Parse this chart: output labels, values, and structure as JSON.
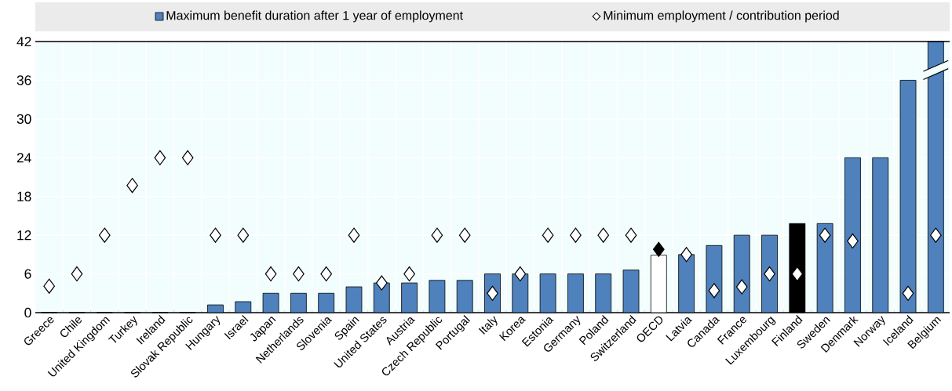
{
  "chart_data": {
    "type": "bar",
    "categories": [
      "Greece",
      "Chile",
      "United Kingdom",
      "Turkey",
      "Ireland",
      "Slovak Republic",
      "Hungary",
      "Israel",
      "Japan",
      "Netherlands",
      "Slovenia",
      "Spain",
      "United States",
      "Austria",
      "Czech Republic",
      "Portugal",
      "Italy",
      "Korea",
      "Estonia",
      "Germany",
      "Poland",
      "Switzerland",
      "OECD",
      "Latvia",
      "Canada",
      "France",
      "Luxembourg",
      "Finland",
      "Sweden",
      "Denmark",
      "Norway",
      "Iceland",
      "Belgium"
    ],
    "series": [
      {
        "name": "Maximum benefit duration after 1 year of employment",
        "color": "#4f81bd",
        "colors": [
          "#4f81bd",
          "#4f81bd",
          "#4f81bd",
          "#4f81bd",
          "#4f81bd",
          "#4f81bd",
          "#4f81bd",
          "#4f81bd",
          "#4f81bd",
          "#4f81bd",
          "#4f81bd",
          "#4f81bd",
          "#4f81bd",
          "#4f81bd",
          "#4f81bd",
          "#4f81bd",
          "#4f81bd",
          "#4f81bd",
          "#4f81bd",
          "#4f81bd",
          "#4f81bd",
          "#4f81bd",
          "#ffffff",
          "#4f81bd",
          "#4f81bd",
          "#4f81bd",
          "#4f81bd",
          "#000000",
          "#4f81bd",
          "#4f81bd",
          "#4f81bd",
          "#4f81bd",
          "#4f81bd"
        ],
        "values": [
          0,
          0,
          0,
          0,
          0,
          0,
          1.2,
          1.7,
          3,
          3,
          3,
          4,
          4.6,
          4.6,
          5,
          5,
          6,
          6,
          6,
          6,
          6,
          6.6,
          8.9,
          9,
          10.4,
          12,
          12,
          13.8,
          13.8,
          24,
          24,
          36,
          42
        ]
      },
      {
        "name": "Minimum employment / contribution period",
        "type": "scatter",
        "marker": "diamond",
        "color": "#ffffff",
        "colors": [
          "#ffffff",
          "#ffffff",
          "#ffffff",
          "#ffffff",
          "#ffffff",
          "#ffffff",
          "#ffffff",
          "#ffffff",
          "#ffffff",
          "#ffffff",
          "#ffffff",
          "#ffffff",
          "#ffffff",
          "#ffffff",
          "#ffffff",
          "#ffffff",
          "#ffffff",
          "#ffffff",
          "#ffffff",
          "#ffffff",
          "#ffffff",
          "#ffffff",
          "#000000",
          "#ffffff",
          "#ffffff",
          "#ffffff",
          "#ffffff",
          "#ffffff",
          "#ffffff",
          "#ffffff",
          "#ffffff",
          "#ffffff",
          "#ffffff"
        ],
        "values": [
          4.1,
          6,
          12,
          19.7,
          24,
          24,
          12,
          12,
          6,
          6,
          6,
          12,
          4.6,
          6,
          12,
          12,
          3,
          6,
          12,
          12,
          12,
          12,
          9.8,
          9,
          3.4,
          4,
          6,
          6,
          12,
          11.1,
          null,
          3,
          12
        ]
      }
    ],
    "ylim": [
      0,
      42
    ],
    "yticks": [
      0,
      6,
      12,
      18,
      24,
      30,
      36,
      42
    ],
    "grid": true,
    "legend": "top"
  }
}
